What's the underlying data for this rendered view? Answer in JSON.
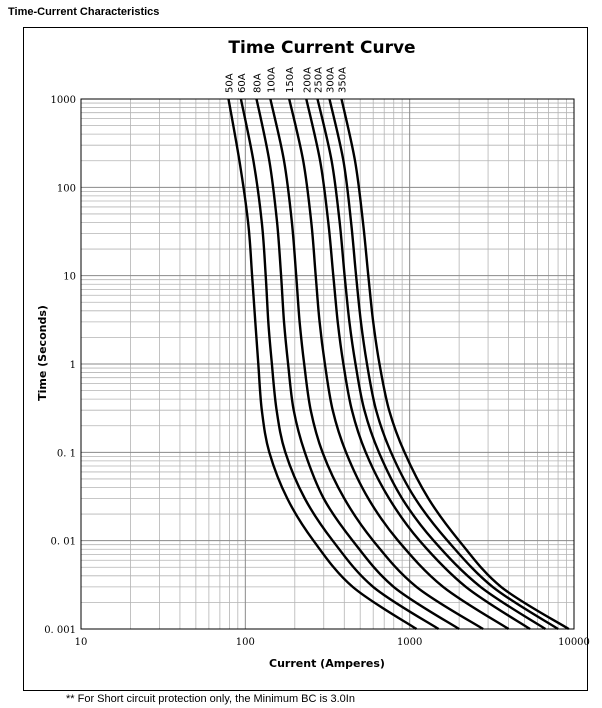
{
  "page": {
    "section_title": "Time-Current Characteristics",
    "footnote": "** For Short circuit protection only, the Minimum BC is 3.0In"
  },
  "chart_data": {
    "type": "line",
    "title": "Time Current Curve",
    "xlabel": "Current  (Amperes)",
    "ylabel": "Time (Seconds)",
    "x_scale": "log",
    "y_scale": "log",
    "xlim": [
      10,
      10000
    ],
    "ylim": [
      0.001,
      1000
    ],
    "x_ticks": [
      10,
      100,
      1000,
      10000
    ],
    "x_tick_labels": [
      "10",
      "100",
      "1000",
      "10000"
    ],
    "y_ticks": [
      0.001,
      0.01,
      0.1,
      1,
      10,
      100,
      1000
    ],
    "y_tick_labels": [
      "0. 001",
      "0. 01",
      "0. 1",
      "1",
      "10",
      "100",
      "1000"
    ],
    "grid": true,
    "series": [
      {
        "name": "50A",
        "points": [
          [
            79,
            1000
          ],
          [
            92,
            200
          ],
          [
            104,
            40
          ],
          [
            110,
            10
          ],
          [
            115,
            3
          ],
          [
            120,
            1
          ],
          [
            126,
            0.3
          ],
          [
            140,
            0.1
          ],
          [
            180,
            0.03
          ],
          [
            260,
            0.01
          ],
          [
            450,
            0.003
          ],
          [
            1100,
            0.001
          ]
        ]
      },
      {
        "name": "60A",
        "points": [
          [
            94,
            1000
          ],
          [
            112,
            200
          ],
          [
            126,
            40
          ],
          [
            133,
            10
          ],
          [
            138,
            3
          ],
          [
            145,
            1
          ],
          [
            155,
            0.3
          ],
          [
            175,
            0.1
          ],
          [
            230,
            0.03
          ],
          [
            340,
            0.01
          ],
          [
            600,
            0.003
          ],
          [
            1500,
            0.001
          ]
        ]
      },
      {
        "name": "80A",
        "points": [
          [
            117,
            1000
          ],
          [
            140,
            200
          ],
          [
            156,
            40
          ],
          [
            165,
            10
          ],
          [
            172,
            3
          ],
          [
            182,
            1
          ],
          [
            197,
            0.3
          ],
          [
            230,
            0.1
          ],
          [
            300,
            0.03
          ],
          [
            450,
            0.01
          ],
          [
            800,
            0.003
          ],
          [
            2000,
            0.001
          ]
        ]
      },
      {
        "name": "100A",
        "points": [
          [
            142,
            1000
          ],
          [
            172,
            200
          ],
          [
            192,
            40
          ],
          [
            204,
            10
          ],
          [
            214,
            3
          ],
          [
            228,
            1
          ],
          [
            250,
            0.3
          ],
          [
            295,
            0.1
          ],
          [
            400,
            0.03
          ],
          [
            600,
            0.01
          ],
          [
            1100,
            0.003
          ],
          [
            2800,
            0.001
          ]
        ]
      },
      {
        "name": "150A",
        "points": [
          [
            185,
            1000
          ],
          [
            225,
            200
          ],
          [
            252,
            40
          ],
          [
            268,
            10
          ],
          [
            283,
            3
          ],
          [
            305,
            1
          ],
          [
            340,
            0.3
          ],
          [
            410,
            0.1
          ],
          [
            560,
            0.03
          ],
          [
            850,
            0.01
          ],
          [
            1600,
            0.003
          ],
          [
            4000,
            0.001
          ]
        ]
      },
      {
        "name": "200A",
        "points": [
          [
            235,
            1000
          ],
          [
            285,
            200
          ],
          [
            320,
            40
          ],
          [
            343,
            10
          ],
          [
            365,
            3
          ],
          [
            395,
            1
          ],
          [
            445,
            0.3
          ],
          [
            540,
            0.1
          ],
          [
            750,
            0.03
          ],
          [
            1150,
            0.01
          ],
          [
            2200,
            0.003
          ],
          [
            5400,
            0.001
          ]
        ]
      },
      {
        "name": "250A",
        "points": [
          [
            275,
            1000
          ],
          [
            335,
            200
          ],
          [
            375,
            40
          ],
          [
            402,
            10
          ],
          [
            430,
            3
          ],
          [
            468,
            1
          ],
          [
            530,
            0.3
          ],
          [
            650,
            0.1
          ],
          [
            900,
            0.03
          ],
          [
            1400,
            0.01
          ],
          [
            2700,
            0.003
          ],
          [
            6700,
            0.001
          ]
        ]
      },
      {
        "name": "300A",
        "points": [
          [
            325,
            1000
          ],
          [
            395,
            200
          ],
          [
            440,
            40
          ],
          [
            472,
            10
          ],
          [
            505,
            3
          ],
          [
            550,
            1
          ],
          [
            625,
            0.3
          ],
          [
            770,
            0.1
          ],
          [
            1080,
            0.03
          ],
          [
            1700,
            0.01
          ],
          [
            3200,
            0.003
          ],
          [
            8000,
            0.001
          ]
        ]
      },
      {
        "name": "350A",
        "points": [
          [
            385,
            1000
          ],
          [
            465,
            200
          ],
          [
            520,
            40
          ],
          [
            560,
            10
          ],
          [
            600,
            3
          ],
          [
            655,
            1
          ],
          [
            750,
            0.3
          ],
          [
            930,
            0.1
          ],
          [
            1300,
            0.03
          ],
          [
            2000,
            0.01
          ],
          [
            3600,
            0.003
          ],
          [
            9300,
            0.001
          ]
        ]
      }
    ]
  }
}
